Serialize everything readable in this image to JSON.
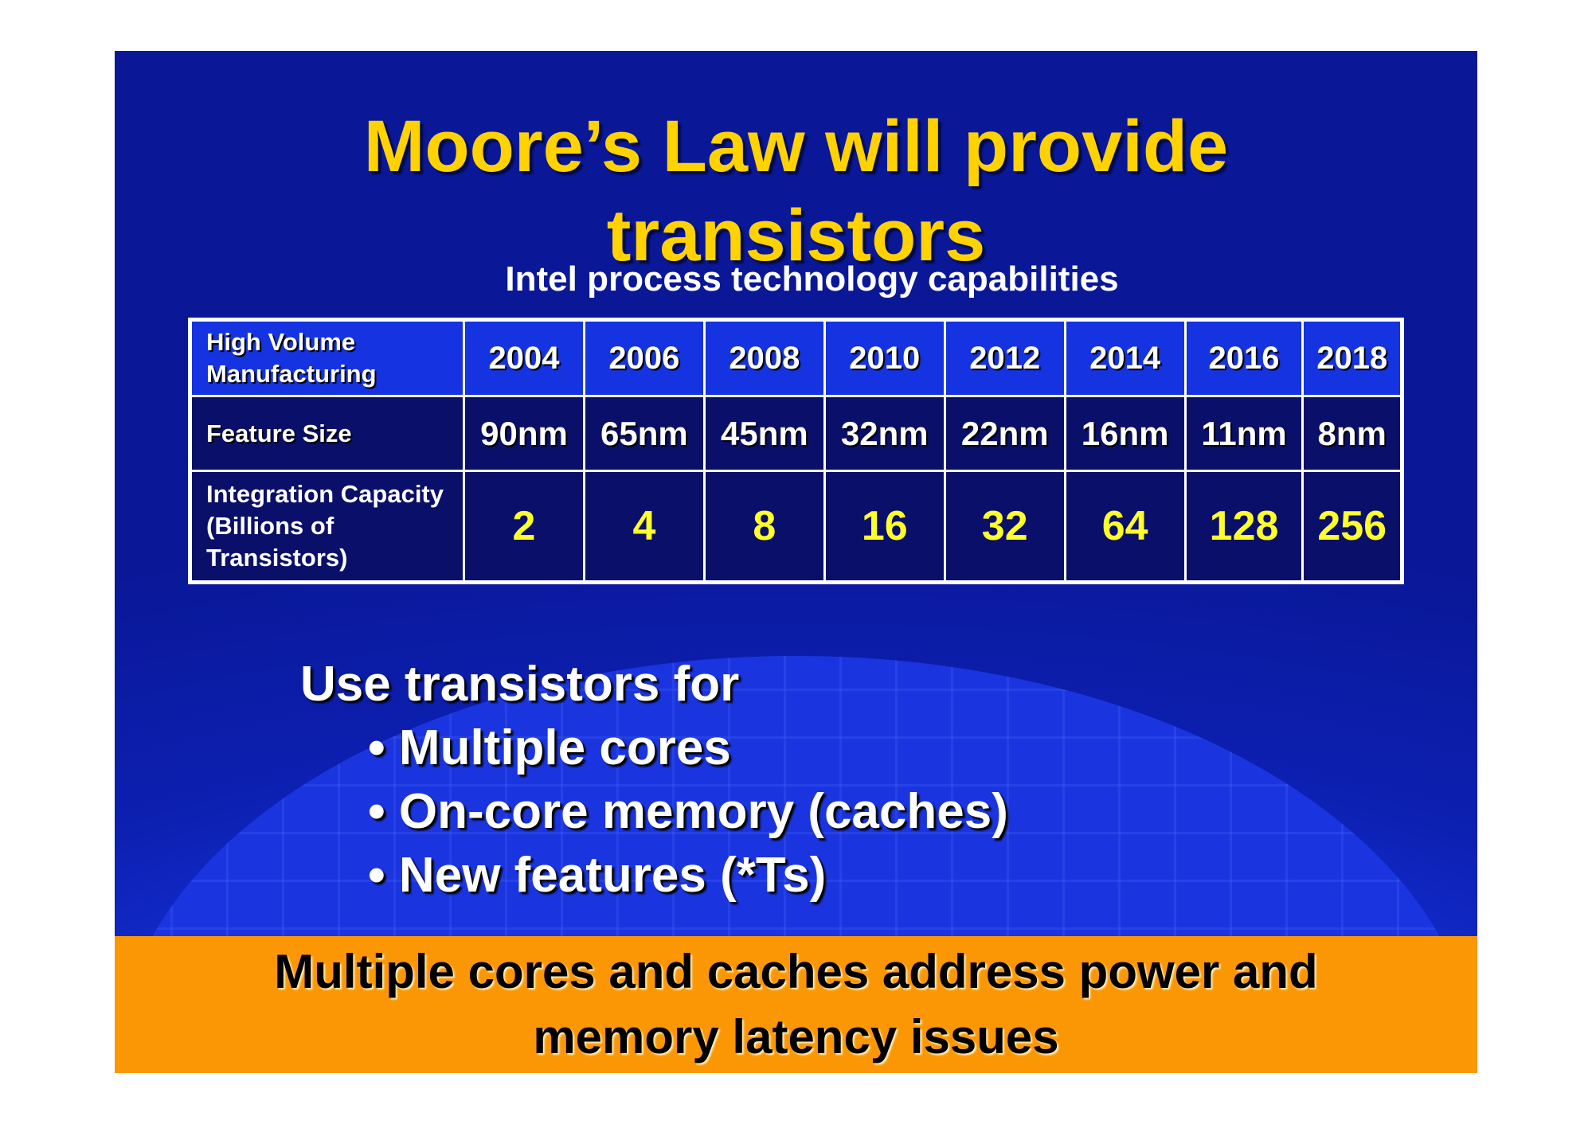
{
  "slide": {
    "title_lines": [
      "Moore’s Law will provide",
      "transistors"
    ],
    "subtitle": "Intel process technology capabilities",
    "table": {
      "header": {
        "label": "High Volume Manufacturing",
        "values": [
          "2004",
          "2006",
          "2008",
          "2010",
          "2012",
          "2014",
          "2016",
          "2018"
        ]
      },
      "rows": [
        {
          "label": "Feature Size",
          "values": [
            "90nm",
            "65nm",
            "45nm",
            "32nm",
            "22nm",
            "16nm",
            "11nm",
            "8nm"
          ]
        },
        {
          "label": "Integration Capacity (Billions of Transistors)",
          "values": [
            "2",
            "4",
            "8",
            "16",
            "32",
            "64",
            "128",
            "256"
          ]
        }
      ]
    },
    "body_heading": "Use transistors for",
    "bullets": [
      "• Multiple cores",
      "• On-core memory (caches)",
      "• New features (*Ts)"
    ],
    "footer_lines": [
      "Multiple cores and caches address power and",
      "memory latency issues"
    ],
    "colors": {
      "background": "#1530d6",
      "title": "#ffd200",
      "footer": "#fb9704",
      "values": "#ffff2a"
    }
  }
}
